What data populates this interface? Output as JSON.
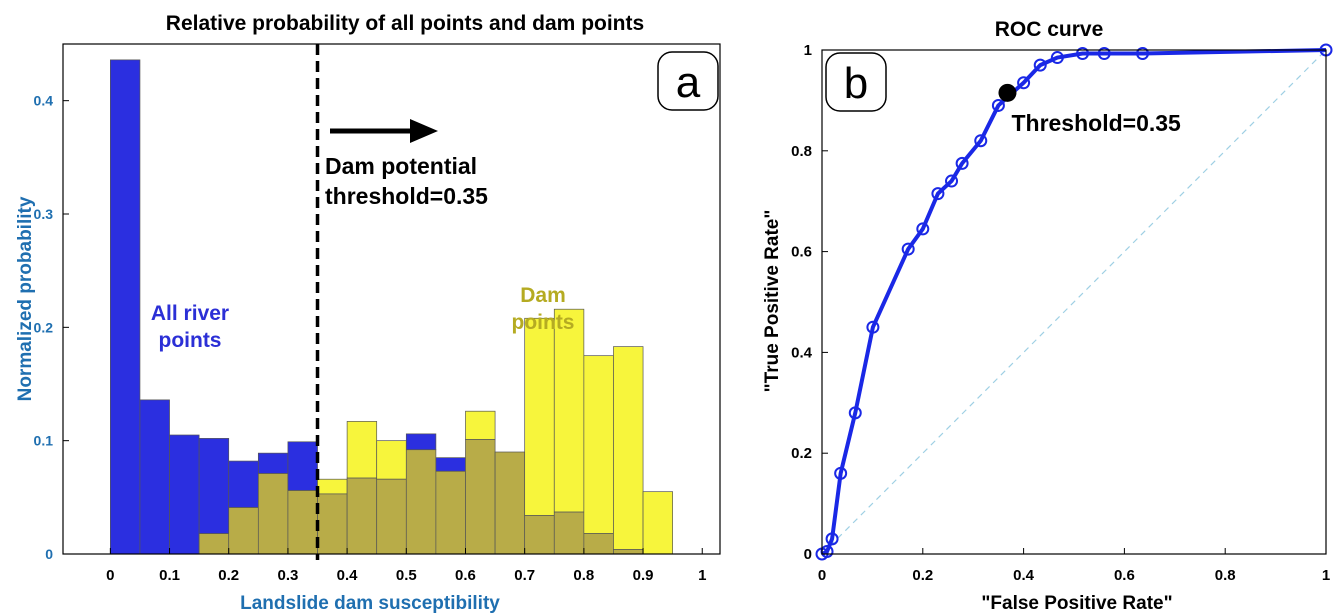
{
  "chart_data": [
    {
      "type": "bar",
      "panel_label": "a",
      "title": "Relative probability of all points and dam points",
      "xlabel": "Landslide dam susceptibility",
      "ylabel": "Normalized probability",
      "xlim": [
        -0.08,
        1.03
      ],
      "ylim": [
        0,
        0.45
      ],
      "xticks": [
        "0",
        "0.1",
        "0.2",
        "0.3",
        "0.4",
        "0.5",
        "0.6",
        "0.7",
        "0.8",
        "0.9",
        "1"
      ],
      "yticks": [
        "0",
        "0.1",
        "0.2",
        "0.3",
        "0.4"
      ],
      "bin_edges": [
        0,
        0.05,
        0.1,
        0.15,
        0.2,
        0.25,
        0.3,
        0.35,
        0.4,
        0.45,
        0.5,
        0.55,
        0.6,
        0.65,
        0.7,
        0.75,
        0.8,
        0.85,
        0.9,
        0.95
      ],
      "series": [
        {
          "name": "All river points",
          "color": "#2b2fe0",
          "values": [
            0.436,
            0.136,
            0.105,
            0.102,
            0.082,
            0.089,
            0.099,
            0.053,
            0.067,
            0.066,
            0.106,
            0.085,
            0.101,
            0.09,
            0.034,
            0.037,
            0.018,
            0.004,
            0.0
          ]
        },
        {
          "name": "Dam points",
          "color": "#f7f53c",
          "values": [
            0.0,
            0.0,
            0.0,
            0.018,
            0.041,
            0.071,
            0.056,
            0.066,
            0.117,
            0.1,
            0.092,
            0.073,
            0.126,
            0.09,
            0.208,
            0.216,
            0.175,
            0.183,
            0.055
          ]
        }
      ],
      "series_labels": {
        "river": "All river\npoints",
        "dam": "Dam\npoints"
      },
      "threshold": {
        "x": 0.35,
        "label_line1": "Dam potential",
        "label_line2": "threshold=0.35"
      },
      "colors": {
        "axis_text": "#1f6fb0",
        "river_label": "#2b2fd6",
        "dam_label": "#b5ab22",
        "overlap": "#b8ac48"
      }
    },
    {
      "type": "line",
      "panel_label": "b",
      "title": "ROC curve",
      "xlabel": "\"False  Positive  Rate\"",
      "ylabel": "\"True  Positive  Rate\"",
      "xlim": [
        0,
        1
      ],
      "ylim": [
        0,
        1
      ],
      "xticks": [
        "0",
        "0.2",
        "0.4",
        "0.6",
        "0.8",
        "1"
      ],
      "yticks": [
        "0",
        "0.2",
        "0.4",
        "0.6",
        "0.8",
        "1"
      ],
      "series": [
        {
          "color": "#1a28e6",
          "x": [
            0,
            0.01,
            0.02,
            0.037,
            0.066,
            0.101,
            0.171,
            0.2,
            0.23,
            0.257,
            0.278,
            0.315,
            0.35,
            0.4,
            0.433,
            0.467,
            0.517,
            0.56,
            0.636,
            1.0
          ],
          "y": [
            0,
            0.005,
            0.03,
            0.16,
            0.28,
            0.45,
            0.605,
            0.645,
            0.715,
            0.74,
            0.775,
            0.82,
            0.89,
            0.935,
            0.97,
            0.985,
            0.993,
            0.993,
            0.993,
            1.0
          ]
        }
      ],
      "reference_line": {
        "x": [
          0,
          1
        ],
        "y": [
          0,
          1
        ],
        "color": "#9fd0e4"
      },
      "threshold_point": {
        "x": 0.368,
        "y": 0.915,
        "label": "Threshold=0.35"
      }
    }
  ]
}
